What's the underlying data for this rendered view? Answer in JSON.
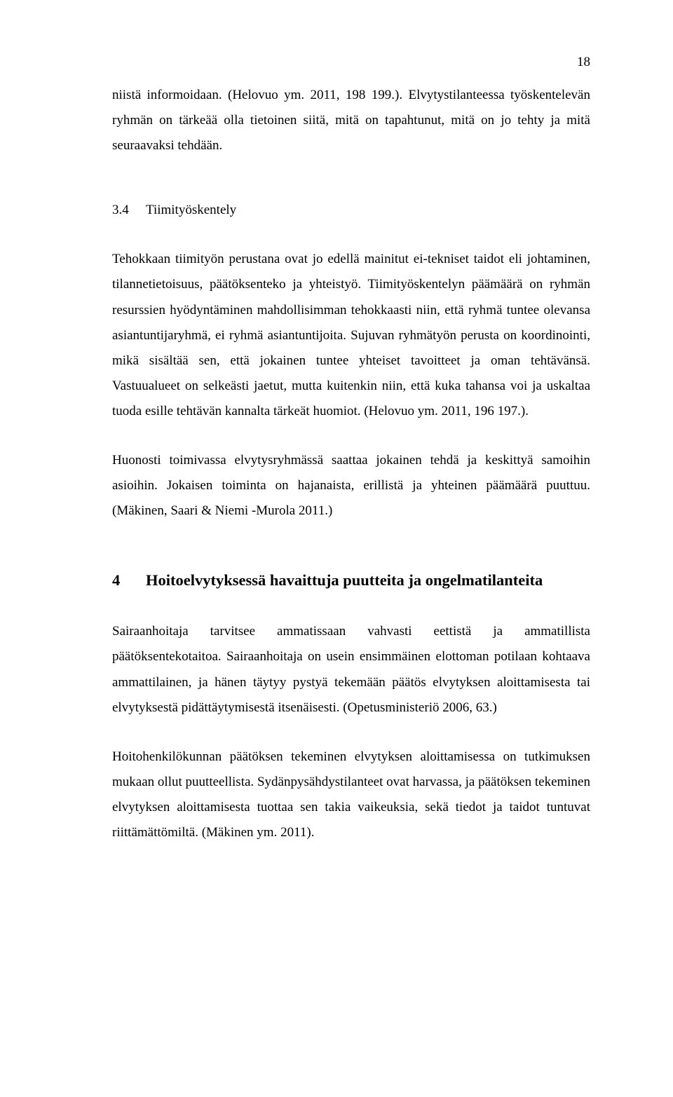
{
  "page_number": "18",
  "para_intro": "niistä informoidaan. (Helovuo ym. 2011, 198 199.). Elvytystilanteessa työskentelevän ryhmän on tärkeää olla tietoinen siitä, mitä on tapahtunut, mitä on jo tehty ja mitä seuraavaksi tehdään.",
  "section_34": {
    "num": "3.4",
    "title": "Tiimityöskentely"
  },
  "para_34_1": "Tehokkaan tiimityön perustana ovat jo edellä mainitut ei-tekniset taidot eli johtaminen, tilannetietoisuus, päätöksenteko ja yhteistyö. Tiimityöskentelyn päämäärä on ryhmän resurssien hyödyntäminen mahdollisimman tehokkaasti niin, että ryhmä tuntee olevansa asiantuntijaryhmä, ei ryhmä asiantuntijoita. Sujuvan ryhmätyön perusta on koordinointi, mikä sisältää sen, että jokainen tuntee yhteiset tavoitteet ja oman tehtävänsä. Vastuualueet on selkeästi jaetut, mutta kuitenkin niin, että kuka tahansa voi ja uskaltaa tuoda esille tehtävän kannalta tärkeät huomiot. (Helovuo ym. 2011, 196 197.).",
  "para_34_2": "Huonosti toimivassa elvytysryhmässä saattaa jokainen tehdä ja keskittyä samoihin asioihin. Jokaisen toiminta on hajanaista, erillistä ja yhteinen päämäärä puuttuu. (Mäkinen, Saari & Niemi -Murola 2011.)",
  "chapter_4": {
    "num": "4",
    "title": "Hoitoelvytyksessä havaittuja puutteita ja ongelmatilanteita"
  },
  "para_4_1": "Sairaanhoitaja tarvitsee ammatissaan vahvasti eettistä ja ammatillista päätöksentekotaitoa. Sairaanhoitaja on usein ensimmäinen elottoman potilaan kohtaava ammattilainen, ja hänen täytyy pystyä tekemään päätös elvytyksen aloittamisesta tai elvytyksestä pidättäytymisestä itsenäisesti. (Opetusministeriö 2006, 63.)",
  "para_4_2": "Hoitohenkilökunnan päätöksen tekeminen elvytyksen aloittamisessa on tutkimuksen mukaan ollut puutteellista. Sydänpysähdystilanteet ovat harvassa, ja päätöksen tekeminen elvytyksen aloittamisesta tuottaa sen takia vaikeuksia, sekä tiedot ja taidot tuntuvat riittämättömiltä. (Mäkinen ym. 2011)."
}
